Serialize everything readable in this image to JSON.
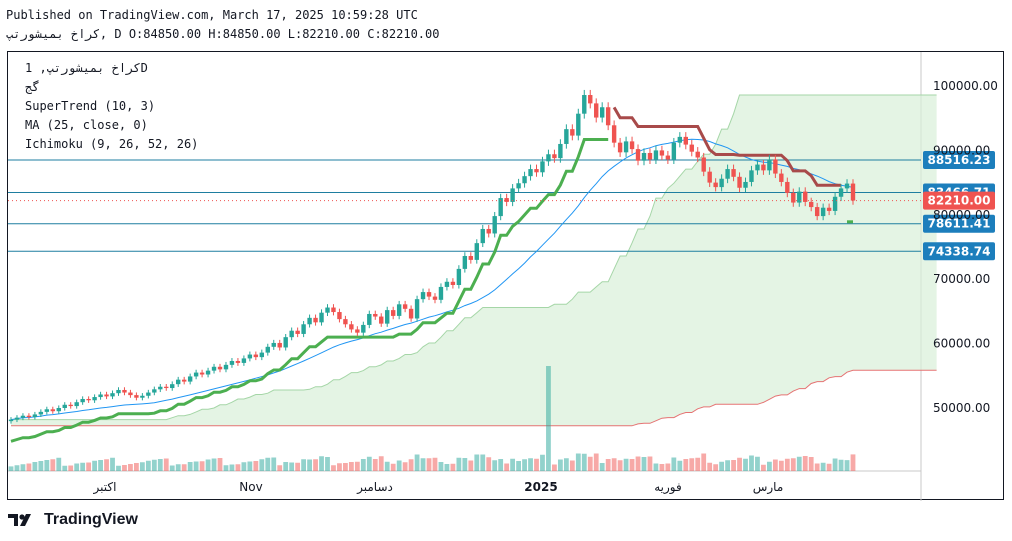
{
  "header": {
    "published": "Published on TradingView.com, March 17, 2025 10:59:28 UTC",
    "symbol_line": "کراخ بمیشورتپ, D O:84850.00 H:84850.00 L:82210.00 C:82210.00"
  },
  "legend": {
    "symbol": "کراخ بمیشورتپ, 1D",
    "exchange": "گج",
    "supertrend": "SuperTrend (10, 3)",
    "ma": "MA (25, close, 0)",
    "ichimoku": "Ichimoku (9, 26, 52, 26)"
  },
  "brand": "TradingView",
  "colors": {
    "up": "#26a69a",
    "down": "#ef5350",
    "supertrend_up": "#4caf50",
    "supertrend_down": "#a84a4a",
    "ma": "#2196f3",
    "cloud": "#d9efd9",
    "level_line": "#1e7ea0",
    "level_label": "#1c7ebc",
    "last_price_label": "#ef5350"
  },
  "chart_data": {
    "type": "candlestick",
    "x_ticks": [
      "اکتبر",
      "Nov",
      "دسامبر",
      "2025",
      "فوریه",
      "مارس"
    ],
    "y_ticks": [
      "100000.00",
      "90000.00",
      "80000.00",
      "70000.00",
      "60000.00",
      "50000.00"
    ],
    "ylim": [
      41000,
      104000
    ],
    "levels": [
      {
        "value": 88516.23,
        "label": "88516.23"
      },
      {
        "value": 83466.71,
        "label": "83466.71"
      },
      {
        "value": 78611.41,
        "label": "78611.41"
      },
      {
        "value": 74338.74,
        "label": "74338.74"
      }
    ],
    "last_price": {
      "value": 82210.0,
      "label": "82210.00"
    },
    "closes": [
      48200,
      48500,
      48800,
      48600,
      49000,
      49400,
      49800,
      49500,
      50000,
      50500,
      50300,
      50900,
      51400,
      51200,
      51700,
      52100,
      51800,
      52300,
      52800,
      52400,
      52000,
      51600,
      51900,
      52400,
      52900,
      53300,
      53100,
      53700,
      54400,
      54100,
      54900,
      55500,
      55200,
      55800,
      56400,
      56000,
      56700,
      57300,
      57000,
      57700,
      58300,
      57900,
      58600,
      59500,
      60100,
      59400,
      61000,
      62000,
      61500,
      63000,
      64000,
      63300,
      64800,
      65600,
      64900,
      63800,
      63000,
      62200,
      61700,
      62900,
      64600,
      64200,
      63100,
      65200,
      64300,
      66100,
      65400,
      63900,
      66900,
      68000,
      67300,
      66800,
      68800,
      69600,
      69100,
      71600,
      73600,
      73000,
      75600,
      77800,
      77100,
      79800,
      82600,
      82000,
      84100,
      84900,
      86000,
      87100,
      86600,
      88300,
      89400,
      88800,
      91000,
      93300,
      92300,
      95700,
      98600,
      97300,
      95100,
      96700,
      93900,
      91200,
      89700,
      91400,
      90200,
      88400,
      89600,
      88600,
      90000,
      89200,
      88600,
      91200,
      92100,
      90900,
      89800,
      88900,
      86700,
      85000,
      84300,
      85600,
      87100,
      85900,
      84200,
      85100,
      86900,
      87800,
      86900,
      88600,
      86400,
      85100,
      83400,
      81900,
      83600,
      82000,
      81200,
      79800,
      81100,
      80600,
      82800,
      84100,
      84850,
      82210
    ],
    "volume_note": "daily volume bars"
  }
}
